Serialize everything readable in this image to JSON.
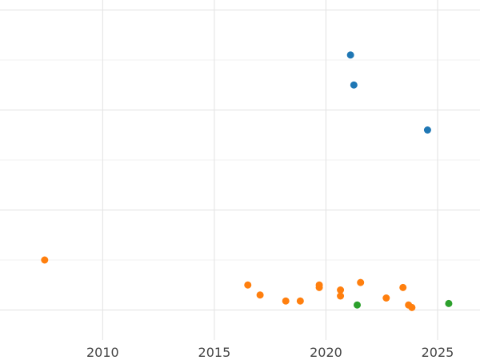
{
  "chart_data": {
    "type": "scatter",
    "title": "",
    "xlabel": "",
    "ylabel": "",
    "xlim": [
      2005.4,
      2026.9
    ],
    "ylim": [
      -0.6,
      6.2
    ],
    "x_ticks": [
      2010,
      2015,
      2020,
      2025
    ],
    "x_tick_labels": [
      "2010",
      "2015",
      "2020",
      "2025"
    ],
    "grid": true,
    "legend": "none",
    "series": [
      {
        "color": "#1f77b4",
        "points": [
          {
            "x": 2021.1,
            "y": 5.1
          },
          {
            "x": 2021.25,
            "y": 4.5
          },
          {
            "x": 2024.55,
            "y": 3.6
          }
        ]
      },
      {
        "color": "#ff7f0e",
        "points": [
          {
            "x": 2007.4,
            "y": 1.0
          },
          {
            "x": 2016.5,
            "y": 0.5
          },
          {
            "x": 2017.05,
            "y": 0.3
          },
          {
            "x": 2018.2,
            "y": 0.18
          },
          {
            "x": 2018.85,
            "y": 0.18
          },
          {
            "x": 2019.7,
            "y": 0.5
          },
          {
            "x": 2019.7,
            "y": 0.45
          },
          {
            "x": 2020.65,
            "y": 0.4
          },
          {
            "x": 2020.65,
            "y": 0.28
          },
          {
            "x": 2021.55,
            "y": 0.55
          },
          {
            "x": 2022.7,
            "y": 0.24
          },
          {
            "x": 2023.45,
            "y": 0.45
          },
          {
            "x": 2023.7,
            "y": 0.1
          },
          {
            "x": 2023.85,
            "y": 0.05
          }
        ]
      },
      {
        "color": "#2ca02c",
        "points": [
          {
            "x": 2021.4,
            "y": 0.1
          },
          {
            "x": 2025.5,
            "y": 0.13
          }
        ]
      }
    ]
  }
}
